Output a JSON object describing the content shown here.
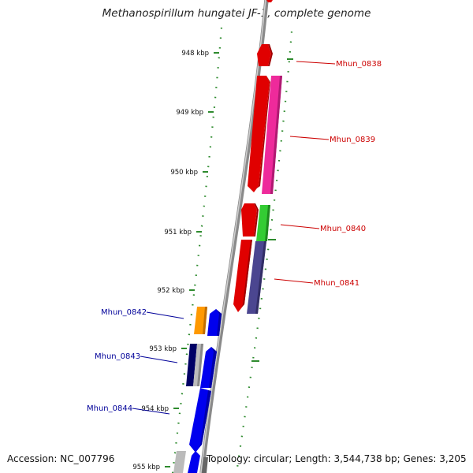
{
  "title": "Methanospirillum hungatei JF-1, complete genome",
  "footer": {
    "accession": "Accession: NC_007796",
    "summary": "Topology: circular; Length: 3,544,738 bp; Genes: 3,205"
  },
  "kbp_ticks": [
    "948 kbp",
    "949 kbp",
    "950 kbp",
    "951 kbp",
    "952 kbp",
    "953 kbp",
    "954 kbp",
    "955 kbp"
  ],
  "colors": {
    "forward_label": "#cc0000",
    "reverse_label": "#000099",
    "tick_green": "#2e8b2e",
    "backbone": "#888888"
  },
  "genes": [
    {
      "name": "Mhun_0838",
      "strand": "forward"
    },
    {
      "name": "Mhun_0839",
      "strand": "forward"
    },
    {
      "name": "Mhun_0840",
      "strand": "forward"
    },
    {
      "name": "Mhun_0841",
      "strand": "forward"
    },
    {
      "name": "Mhun_0842",
      "strand": "reverse"
    },
    {
      "name": "Mhun_0843",
      "strand": "reverse"
    },
    {
      "name": "Mhun_0844",
      "strand": "reverse"
    }
  ]
}
